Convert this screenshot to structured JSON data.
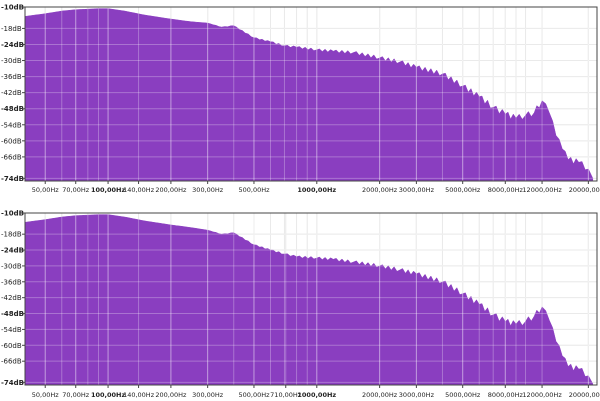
{
  "colors": {
    "fill": "#8a3ec0",
    "grid": "#e2e2e2",
    "panel_bg": "#ffffff",
    "axis": "#444444"
  },
  "chart_data": [
    {
      "type": "area",
      "x_scale": "log",
      "grid": true,
      "xlim": [
        40,
        22000
      ],
      "ylim": [
        -75,
        -10
      ],
      "y_ticks": [
        {
          "label": "-10dB",
          "value": -10,
          "bold": true
        },
        {
          "label": "-18dB",
          "value": -18,
          "bold": false
        },
        {
          "label": "-24dB",
          "value": -24,
          "bold": true
        },
        {
          "label": "-30dB",
          "value": -30,
          "bold": false
        },
        {
          "label": "-36dB",
          "value": -36,
          "bold": false
        },
        {
          "label": "-42dB",
          "value": -42,
          "bold": false
        },
        {
          "label": "-48dB",
          "value": -48,
          "bold": true
        },
        {
          "label": "-54dB",
          "value": -54,
          "bold": false
        },
        {
          "label": "-60dB",
          "value": -60,
          "bold": false
        },
        {
          "label": "-66dB",
          "value": -66,
          "bold": false
        },
        {
          "label": "-74dB",
          "value": -74,
          "bold": true
        }
      ],
      "x_ticks": [
        {
          "label": "50,00Hz",
          "value": 50,
          "bold": false
        },
        {
          "label": "70,00Hz",
          "value": 70,
          "bold": false
        },
        {
          "label": "100,00Hz",
          "value": 100,
          "bold": true
        },
        {
          "label": "140,00Hz",
          "value": 140,
          "bold": false
        },
        {
          "label": "200,00Hz",
          "value": 200,
          "bold": false
        },
        {
          "label": "300,00Hz",
          "value": 300,
          "bold": false
        },
        {
          "label": "500,00Hz",
          "value": 500,
          "bold": false
        },
        {
          "label": "1000,00Hz",
          "value": 1000,
          "bold": true
        },
        {
          "label": "2000,00Hz",
          "value": 2000,
          "bold": false
        },
        {
          "label": "3000,00Hz",
          "value": 3000,
          "bold": false
        },
        {
          "label": "5000,00Hz",
          "value": 5000,
          "bold": false
        },
        {
          "label": "8000,00Hz",
          "value": 8000,
          "bold": false
        },
        {
          "label": "12000,00Hz",
          "value": 12000,
          "bold": false
        },
        {
          "label": "20000,00Hz",
          "value": 20000,
          "bold": false
        }
      ],
      "x": [
        40,
        50,
        60,
        70,
        80,
        90,
        100,
        120,
        150,
        200,
        250,
        300,
        350,
        400,
        500,
        600,
        700,
        800,
        1000,
        1200,
        1500,
        2000,
        2500,
        3000,
        4000,
        5000,
        6000,
        7000,
        8000,
        9000,
        10000,
        11000,
        12000,
        13000,
        14000,
        15000,
        16000,
        18000,
        20000,
        21000
      ],
      "y": [
        -13.5,
        -12.5,
        -11.5,
        -11,
        -10.8,
        -10.6,
        -10.6,
        -11.5,
        -13,
        -14.5,
        -15.5,
        -16,
        -17.5,
        -17,
        -21.5,
        -23,
        -24.5,
        -25,
        -26,
        -26.5,
        -27,
        -29,
        -30.5,
        -32.5,
        -35,
        -39.5,
        -43.5,
        -47.5,
        -50,
        -51.5,
        -50.5,
        -49.5,
        -45,
        -49.5,
        -58,
        -63,
        -67,
        -68,
        -70.5,
        -74
      ]
    },
    {
      "type": "area",
      "x_scale": "log",
      "grid": true,
      "xlim": [
        40,
        22000
      ],
      "ylim": [
        -75,
        -10
      ],
      "y_ticks": [
        {
          "label": "-10dB",
          "value": -10,
          "bold": true
        },
        {
          "label": "-18dB",
          "value": -18,
          "bold": false
        },
        {
          "label": "-24dB",
          "value": -24,
          "bold": true
        },
        {
          "label": "-30dB",
          "value": -30,
          "bold": false
        },
        {
          "label": "-36dB",
          "value": -36,
          "bold": false
        },
        {
          "label": "-42dB",
          "value": -42,
          "bold": false
        },
        {
          "label": "-48dB",
          "value": -48,
          "bold": true
        },
        {
          "label": "-54dB",
          "value": -54,
          "bold": false
        },
        {
          "label": "-60dB",
          "value": -60,
          "bold": false
        },
        {
          "label": "-66dB",
          "value": -66,
          "bold": false
        },
        {
          "label": "-74dB",
          "value": -74,
          "bold": true
        }
      ],
      "x_ticks": [
        {
          "label": "50,00Hz",
          "value": 50,
          "bold": false
        },
        {
          "label": "70,00Hz",
          "value": 70,
          "bold": false
        },
        {
          "label": "100,00Hz",
          "value": 100,
          "bold": true
        },
        {
          "label": "140,00Hz",
          "value": 140,
          "bold": false
        },
        {
          "label": "200,00Hz",
          "value": 200,
          "bold": false
        },
        {
          "label": "300,00Hz",
          "value": 300,
          "bold": false
        },
        {
          "label": "500,00Hz",
          "value": 500,
          "bold": false
        },
        {
          "label": "710,00Hz",
          "value": 710,
          "bold": false
        },
        {
          "label": "1000,00Hz",
          "value": 1000,
          "bold": true
        },
        {
          "label": "2000,00Hz",
          "value": 2000,
          "bold": false
        },
        {
          "label": "3000,00Hz",
          "value": 3000,
          "bold": false
        },
        {
          "label": "5000,00Hz",
          "value": 5000,
          "bold": false
        },
        {
          "label": "8000,00Hz",
          "value": 8000,
          "bold": false
        },
        {
          "label": "12000,00Hz",
          "value": 12000,
          "bold": false
        },
        {
          "label": "20000,00Hz",
          "value": 20000,
          "bold": false
        }
      ],
      "x": [
        40,
        50,
        60,
        70,
        80,
        90,
        100,
        120,
        150,
        200,
        250,
        300,
        350,
        400,
        500,
        600,
        700,
        800,
        1000,
        1200,
        1500,
        2000,
        2500,
        3000,
        4000,
        5000,
        6000,
        7000,
        8000,
        9000,
        10000,
        11000,
        12000,
        13000,
        14000,
        15000,
        16000,
        18000,
        20000,
        21000
      ],
      "y": [
        -13.5,
        -12.5,
        -11.5,
        -11,
        -10.8,
        -10.6,
        -10.6,
        -11.5,
        -13,
        -14.5,
        -15.5,
        -16.5,
        -18,
        -17.5,
        -22,
        -24,
        -25.5,
        -26.5,
        -27,
        -27.5,
        -28.5,
        -30,
        -31.5,
        -33,
        -36,
        -40.5,
        -44.5,
        -48.5,
        -51,
        -52,
        -51,
        -49,
        -45.5,
        -50.5,
        -58.5,
        -64,
        -68,
        -69,
        -71.5,
        -74.5
      ]
    }
  ]
}
